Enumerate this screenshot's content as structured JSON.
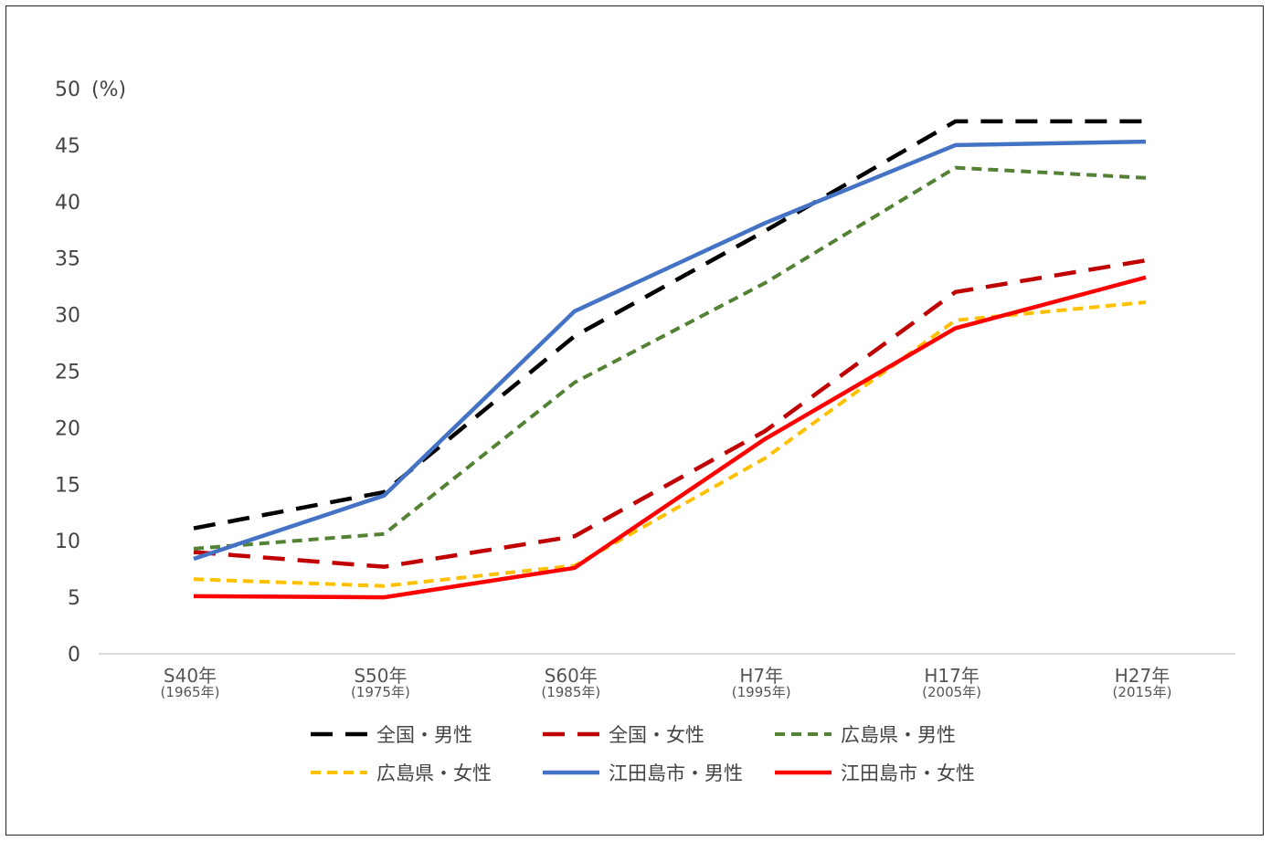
{
  "chart_data": {
    "type": "line",
    "unit": "(%)",
    "ylim": [
      0,
      50
    ],
    "y_ticks": [
      0,
      5,
      10,
      15,
      20,
      25,
      30,
      35,
      40,
      45,
      50
    ],
    "categories": [
      {
        "main": "S40年",
        "sub": "(1965年)"
      },
      {
        "main": "S50年",
        "sub": "(1975年)"
      },
      {
        "main": "S60年",
        "sub": "(1985年)"
      },
      {
        "main": "H7年",
        "sub": "(1995年)"
      },
      {
        "main": "H17年",
        "sub": "(2005年)"
      },
      {
        "main": "H27年",
        "sub": "(2015年)"
      }
    ],
    "series": [
      {
        "name": "全国・男性",
        "color": "#000000",
        "style": "dashed",
        "values": [
          11.1,
          14.3,
          28.1,
          37.4,
          47.1,
          47.1
        ]
      },
      {
        "name": "全国・女性",
        "color": "#c00000",
        "style": "dashed",
        "values": [
          9.0,
          7.7,
          10.4,
          19.7,
          32.0,
          34.8
        ]
      },
      {
        "name": "広島県・男性",
        "color": "#548235",
        "style": "dashed-small",
        "values": [
          9.3,
          10.6,
          24.0,
          32.8,
          43.0,
          42.1
        ]
      },
      {
        "name": "広島県・女性",
        "color": "#ffc000",
        "style": "dashed-small",
        "values": [
          6.6,
          6.0,
          7.8,
          17.3,
          29.5,
          31.1
        ]
      },
      {
        "name": "江田島市・男性",
        "color": "#4472c4",
        "style": "solid",
        "values": [
          8.4,
          14.0,
          30.3,
          38.1,
          45.0,
          45.3
        ]
      },
      {
        "name": "江田島市・女性",
        "color": "#ff0000",
        "style": "solid",
        "values": [
          5.1,
          5.0,
          7.6,
          19.0,
          28.8,
          33.3
        ]
      }
    ],
    "grid": false,
    "legend_position": "bottom"
  }
}
